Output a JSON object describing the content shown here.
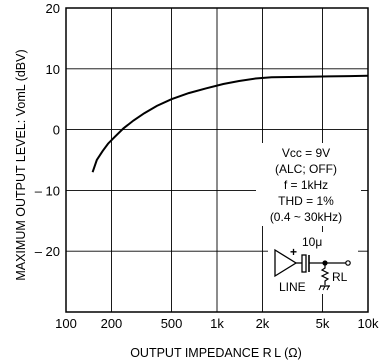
{
  "chart_data": {
    "type": "line",
    "xlabel": "OUTPUT  IMPEDANCE  R L (Ω)",
    "ylabel": "MAXIMUM  OUTPUT  LEVEL: VomL (dBV)",
    "xscale": "log",
    "xlim": [
      100,
      10000
    ],
    "ylim": [
      -30,
      20
    ],
    "grid": true,
    "x_ticks": [
      100,
      200,
      500,
      1000,
      2000,
      5000,
      10000
    ],
    "x_tick_labels": [
      "100",
      "200",
      "500",
      "1k",
      "2k",
      "5k",
      "10k"
    ],
    "y_ticks": [
      20,
      10,
      0,
      -10,
      -20
    ],
    "y_tick_labels": [
      "20",
      "10",
      "0",
      "– 10",
      "– 20"
    ],
    "series": [
      {
        "x": [
          150,
          160,
          175,
          190,
          210,
          240,
          280,
          330,
          400,
          500,
          650,
          850,
          1100,
          1400,
          1800,
          2300,
          3000,
          4000,
          5500,
          7500,
          10000
        ],
        "y": [
          -7.0,
          -5.0,
          -3.5,
          -2.3,
          -1.2,
          0.2,
          1.5,
          2.7,
          3.9,
          5.0,
          6.0,
          6.8,
          7.5,
          8.0,
          8.4,
          8.6,
          8.65,
          8.7,
          8.75,
          8.8,
          8.85
        ]
      }
    ],
    "annotations": {
      "conditions": [
        "Vcc = 9V",
        "(ALC; OFF)",
        "f = 1kHz",
        "THD = 1%",
        "(0.4 ~ 30kHz)"
      ],
      "circuit": {
        "capacitor": "10μ",
        "plus": "+",
        "source": "LINE",
        "load": "RL"
      }
    }
  }
}
